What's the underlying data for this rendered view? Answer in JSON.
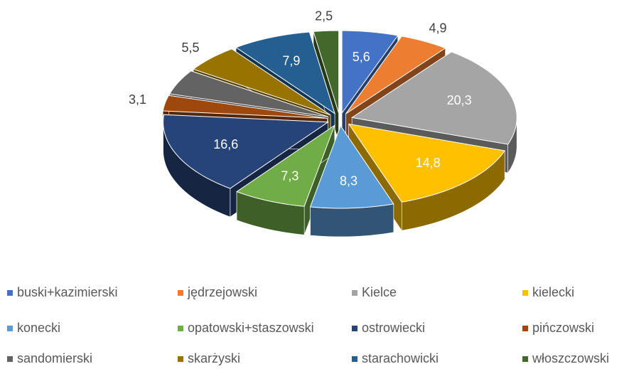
{
  "chart_data": {
    "type": "pie3d",
    "categories": [
      "buski+kazimierski",
      "jędrzejowski",
      "Kielce",
      "kielecki",
      "konecki",
      "opatowski+staszowski",
      "ostrowiecki",
      "pińczowski",
      "sandomierski",
      "skarżyski",
      "starachowicki",
      "włoszczowski"
    ],
    "values": [
      5.6,
      4.9,
      20.3,
      14.8,
      8.3,
      7.3,
      16.6,
      3.1,
      5.0,
      5.5,
      7.9,
      2.5
    ],
    "value_labels": [
      "5,6",
      "4,9",
      "20,3",
      "14,8",
      "8,3",
      "7,3",
      "16,6",
      "3,1",
      null,
      "5,5",
      "7,9",
      "2,5"
    ],
    "colors": [
      "#4472c4",
      "#ed7d31",
      "#a5a5a5",
      "#ffc000",
      "#5b9bd5",
      "#70ad47",
      "#264478",
      "#9e480e",
      "#636363",
      "#997300",
      "#255e91",
      "#43682b"
    ],
    "legend": "bottom"
  }
}
